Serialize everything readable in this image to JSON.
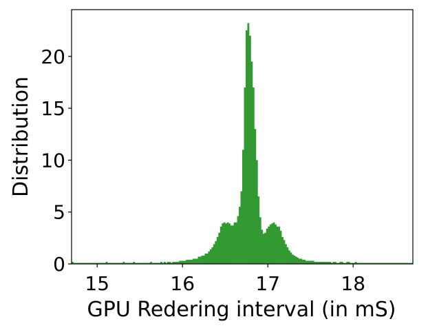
{
  "chart_data": {
    "type": "bar",
    "subtype": "histogram",
    "title": "",
    "xlabel": "GPU Redering interval (in mS)",
    "ylabel": "Distribution",
    "xlim": [
      14.7,
      18.7
    ],
    "ylim": [
      0,
      24.5
    ],
    "x_ticks": [
      {
        "value": 15,
        "label": "15"
      },
      {
        "value": 16,
        "label": "16"
      },
      {
        "value": 17,
        "label": "17"
      },
      {
        "value": 18,
        "label": "18"
      }
    ],
    "y_ticks": [
      {
        "value": 0,
        "label": "0"
      },
      {
        "value": 5,
        "label": "5"
      },
      {
        "value": 10,
        "label": "10"
      },
      {
        "value": 15,
        "label": "15"
      },
      {
        "value": 20,
        "label": "20"
      }
    ],
    "grid": false,
    "legend": "none",
    "bar_color": "#339933",
    "bin_width": 0.02,
    "series": [
      {
        "x": [
          14.71,
          14.73,
          14.75,
          14.77,
          14.79,
          14.81,
          14.83,
          14.85,
          14.87,
          14.89,
          14.91,
          14.93,
          14.95,
          14.97,
          14.99,
          15.01,
          15.03,
          15.05,
          15.07,
          15.09,
          15.11,
          15.13,
          15.15,
          15.17,
          15.19,
          15.21,
          15.23,
          15.25,
          15.27,
          15.29,
          15.31,
          15.33,
          15.35,
          15.37,
          15.39,
          15.41,
          15.43,
          15.45,
          15.47,
          15.49,
          15.51,
          15.53,
          15.55,
          15.57,
          15.59,
          15.61,
          15.63,
          15.65,
          15.67,
          15.69,
          15.71,
          15.73,
          15.75,
          15.77,
          15.79,
          15.81,
          15.83,
          15.85,
          15.87,
          15.89,
          15.91,
          15.93,
          15.95,
          15.97,
          15.99,
          16.01,
          16.03,
          16.05,
          16.07,
          16.09,
          16.11,
          16.13,
          16.15,
          16.17,
          16.19,
          16.21,
          16.23,
          16.25,
          16.27,
          16.29,
          16.31,
          16.33,
          16.35,
          16.37,
          16.39,
          16.41,
          16.43,
          16.45,
          16.47,
          16.49,
          16.51,
          16.53,
          16.55,
          16.57,
          16.59,
          16.61,
          16.63,
          16.65,
          16.67,
          16.69,
          16.71,
          16.73,
          16.75,
          16.77,
          16.79,
          16.81,
          16.83,
          16.85,
          16.87,
          16.89,
          16.91,
          16.93,
          16.95,
          16.97,
          16.99,
          17.01,
          17.03,
          17.05,
          17.07,
          17.09,
          17.11,
          17.13,
          17.15,
          17.17,
          17.19,
          17.21,
          17.23,
          17.25,
          17.27,
          17.29,
          17.31,
          17.33,
          17.35,
          17.37,
          17.39,
          17.41,
          17.43,
          17.45,
          17.47,
          17.49,
          17.51,
          17.53,
          17.55,
          17.57,
          17.59,
          17.61,
          17.63,
          17.65,
          17.67,
          17.69,
          17.71,
          17.73,
          17.75,
          17.77,
          17.79,
          17.81,
          17.83,
          17.85,
          17.87,
          17.89,
          17.91,
          17.93,
          17.95,
          17.97,
          17.99,
          18.01,
          18.03,
          18.05,
          18.07,
          18.09,
          18.11,
          18.13,
          18.15,
          18.17,
          18.19,
          18.21,
          18.23,
          18.25,
          18.27,
          18.29,
          18.31,
          18.33,
          18.35,
          18.37,
          18.39,
          18.41,
          18.43,
          18.45,
          18.47,
          18.49,
          18.51,
          18.53,
          18.55,
          18.57,
          18.59,
          18.61,
          18.63,
          18.65,
          18.67,
          18.69
        ],
        "values": [
          0.2,
          0.1,
          0.1,
          0.1,
          0.1,
          0.1,
          0.1,
          0.1,
          0.1,
          0.1,
          0.1,
          0.1,
          0.1,
          0.1,
          0.1,
          0.1,
          0.1,
          0.1,
          0.1,
          0.1,
          0.2,
          0.1,
          0.1,
          0.1,
          0.1,
          0.1,
          0.1,
          0.1,
          0.1,
          0.1,
          0.2,
          0.1,
          0.1,
          0.1,
          0.1,
          0.1,
          0.2,
          0.1,
          0.1,
          0.1,
          0.1,
          0.1,
          0.1,
          0.1,
          0.1,
          0.1,
          0.2,
          0.1,
          0.1,
          0.1,
          0.1,
          0.1,
          0.2,
          0.1,
          0.2,
          0.1,
          0.2,
          0.2,
          0.1,
          0.2,
          0.2,
          0.2,
          0.2,
          0.3,
          0.3,
          0.3,
          0.3,
          0.4,
          0.4,
          0.4,
          0.4,
          0.5,
          0.5,
          0.5,
          0.7,
          0.7,
          0.8,
          0.8,
          1.0,
          1.0,
          1.2,
          1.4,
          1.6,
          1.9,
          2.2,
          2.6,
          3.0,
          3.6,
          3.9,
          4.0,
          3.9,
          4.0,
          3.9,
          3.7,
          3.7,
          4.0,
          4.0,
          4.6,
          5.5,
          7.0,
          11.0,
          17.0,
          22.5,
          23.2,
          22.0,
          19.5,
          17.0,
          13.0,
          10.0,
          6.5,
          4.5,
          3.3,
          2.9,
          3.0,
          3.4,
          3.6,
          3.8,
          3.9,
          4.0,
          3.8,
          3.6,
          3.6,
          3.2,
          2.6,
          2.3,
          1.9,
          1.6,
          1.3,
          1.1,
          0.9,
          0.8,
          0.7,
          0.6,
          0.5,
          0.5,
          0.4,
          0.4,
          0.3,
          0.3,
          0.3,
          0.3,
          0.3,
          0.2,
          0.2,
          0.2,
          0.2,
          0.2,
          0.2,
          0.2,
          0.2,
          0.2,
          0.2,
          0.1,
          0.2,
          0.2,
          0.1,
          0.1,
          0.2,
          0.2,
          0.1,
          0.1,
          0.2,
          0.2,
          0.1,
          0.1,
          0.1,
          0.2,
          0.1,
          0.1,
          0.1,
          0.1,
          0.1,
          0.1,
          0.1,
          0.1,
          0.1,
          0.1,
          0.1,
          0.1,
          0.1,
          0.1,
          0.1,
          0.1,
          0.1,
          0.1,
          0.1,
          0.1,
          0.1,
          0.1,
          0.1,
          0.1,
          0.1,
          0.1,
          0.1,
          0.1,
          0.1,
          0.1,
          0.1,
          0.1,
          0.1
        ]
      }
    ]
  }
}
